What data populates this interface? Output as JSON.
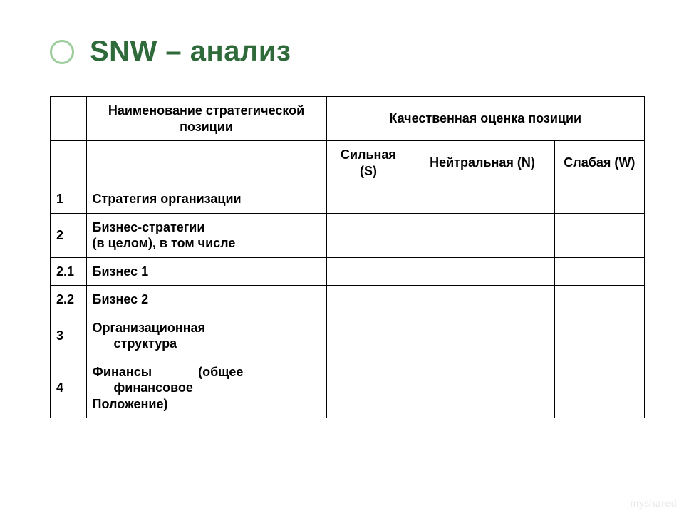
{
  "title": "SNW – анализ",
  "accent_color": "#2f6b3a",
  "bullet_border_color": "#9acd9a",
  "table": {
    "header_main_1": "Наименование стратегической позиции",
    "header_main_2": "Качественная оценка позиции",
    "header_s": "Сильная (S)",
    "header_n": "Нейтральная (N)",
    "header_w": "Слабая (W)",
    "rows": [
      {
        "num": "1",
        "name_l1": "Стратегия организации",
        "name_l2": "",
        "s": "",
        "n": "",
        "w": ""
      },
      {
        "num": "2",
        "name_l1": "Бизнес-стратегии",
        "name_l2": "(в целом), в том числе",
        "s": "",
        "n": "",
        "w": ""
      },
      {
        "num": "2.1",
        "name_l1": "Бизнес 1",
        "name_l2": "",
        "s": "",
        "n": "",
        "w": ""
      },
      {
        "num": "2.2",
        "name_l1": "Бизнес 2",
        "name_l2": "",
        "s": "",
        "n": "",
        "w": ""
      },
      {
        "num": "3",
        "name_l1": "Организационная",
        "name_l2": "структура",
        "indent_l2": true,
        "s": "",
        "n": "",
        "w": ""
      },
      {
        "num": "4",
        "name_l1": "Финансы             (общее",
        "name_l2": "финансовое",
        "name_l3": "Положение)",
        "indent_l2": true,
        "s": "",
        "n": "",
        "w": ""
      }
    ]
  },
  "watermark": "myshared"
}
